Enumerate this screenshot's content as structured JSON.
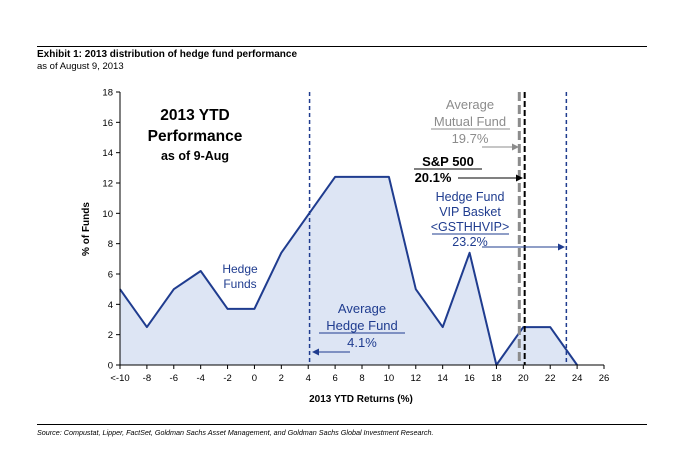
{
  "header": {
    "title": "Exhibit 1: 2013 distribution of hedge fund performance",
    "subtitle": "as of August 9, 2013"
  },
  "footer": {
    "source": "Source: Compustat, Lipper, FactSet, Goldman Sachs Asset Management, and Goldman Sachs Global Investment Research."
  },
  "chart_data": {
    "type": "area",
    "ylabel": "% of Funds",
    "xlabel": "2013 YTD Returns (%)",
    "xlim": [
      -10,
      26
    ],
    "ylim": [
      0,
      18
    ],
    "x_ticks": [
      "<-10",
      "-8",
      "-6",
      "-4",
      "-2",
      "0",
      "2",
      "4",
      "6",
      "8",
      "10",
      "12",
      "14",
      "16",
      "18",
      "20",
      "22",
      "24",
      "26"
    ],
    "y_ticks": [
      "0",
      "2",
      "4",
      "6",
      "8",
      "10",
      "12",
      "14",
      "16",
      "18"
    ],
    "grid": false,
    "series": [
      {
        "name": "Hedge Funds",
        "x": [
          -10,
          -8,
          -6,
          -4,
          -2,
          0,
          2,
          4,
          6,
          8,
          10,
          12,
          14,
          16,
          18,
          20,
          22,
          24
        ],
        "y": [
          5.0,
          2.5,
          5.0,
          6.2,
          3.7,
          3.7,
          7.4,
          9.9,
          12.4,
          12.4,
          12.4,
          5.0,
          2.5,
          7.4,
          0.0,
          2.5,
          2.5,
          0.0
        ]
      }
    ],
    "reference_lines": [
      {
        "x": 4.1,
        "style": "dashed",
        "color": "#1f3c8f"
      },
      {
        "x": 19.7,
        "style": "dashed",
        "color": "#8c8c8c"
      },
      {
        "x": 20.1,
        "style": "dashed",
        "color": "#000000"
      },
      {
        "x": 23.2,
        "style": "dashed",
        "color": "#1f3c8f"
      }
    ],
    "annotations": {
      "ytd_box": {
        "line1": "2013 YTD",
        "line2": "Performance",
        "line3": "as of 9-Aug"
      },
      "hedge_funds_label": {
        "line1": "Hedge",
        "line2": "Funds"
      },
      "avg_hedge_fund": {
        "line1": "Average",
        "line2": "Hedge Fund",
        "value": "4.1%"
      },
      "avg_mutual_fund": {
        "line1": "Average",
        "line2": "Mutual Fund",
        "value": "19.7%"
      },
      "sp500": {
        "line1": "S&P 500",
        "value": "20.1%"
      },
      "vip_basket": {
        "line1": "Hedge Fund",
        "line2": "VIP Basket",
        "line3": "<GSTHHVIP>",
        "value": "23.2%"
      }
    },
    "colors": {
      "fill": "#dde5f4",
      "line": "#1f3c8f",
      "navy": "#1f3c8f",
      "gray": "#8c8c8c"
    }
  }
}
